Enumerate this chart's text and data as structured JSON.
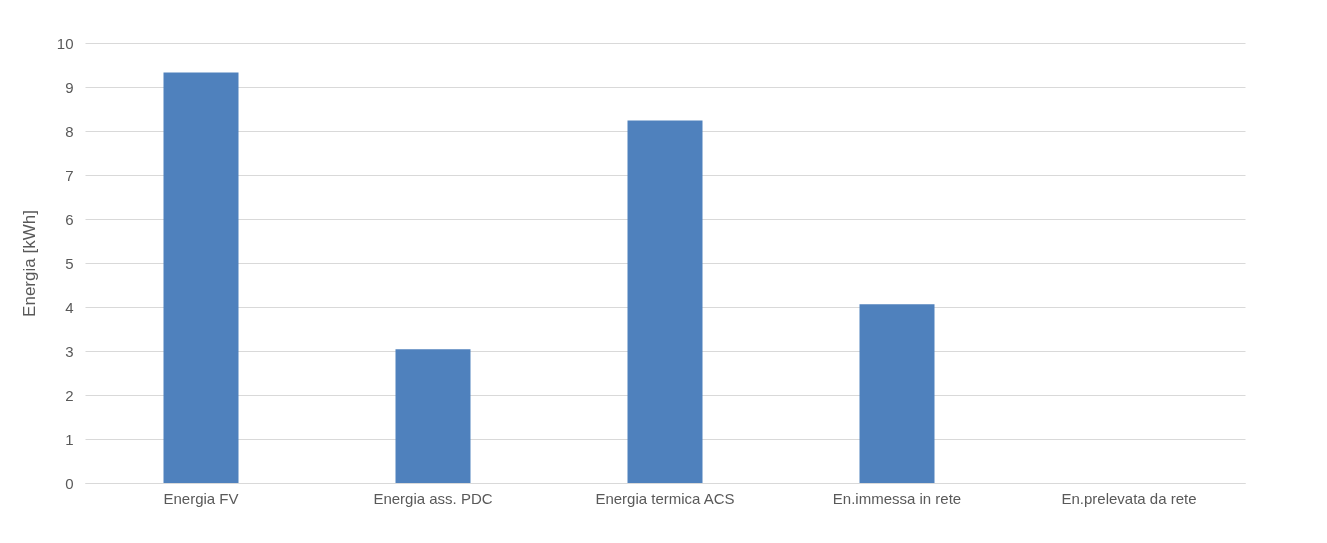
{
  "chart_data": {
    "type": "bar",
    "ylabel": "Energia [kWh]",
    "categories": [
      "Energia FV",
      "Energia ass. PDC",
      "Energia termica ACS",
      "En.immessa in rete",
      "En.prelevata da rete"
    ],
    "values": [
      9.33,
      3.04,
      8.24,
      4.06,
      0
    ],
    "color": "#4f81bd",
    "ylim": [
      0,
      10
    ],
    "yticks": [
      0,
      1,
      2,
      3,
      4,
      5,
      6,
      7,
      8,
      9,
      10
    ],
    "grid": "y"
  }
}
